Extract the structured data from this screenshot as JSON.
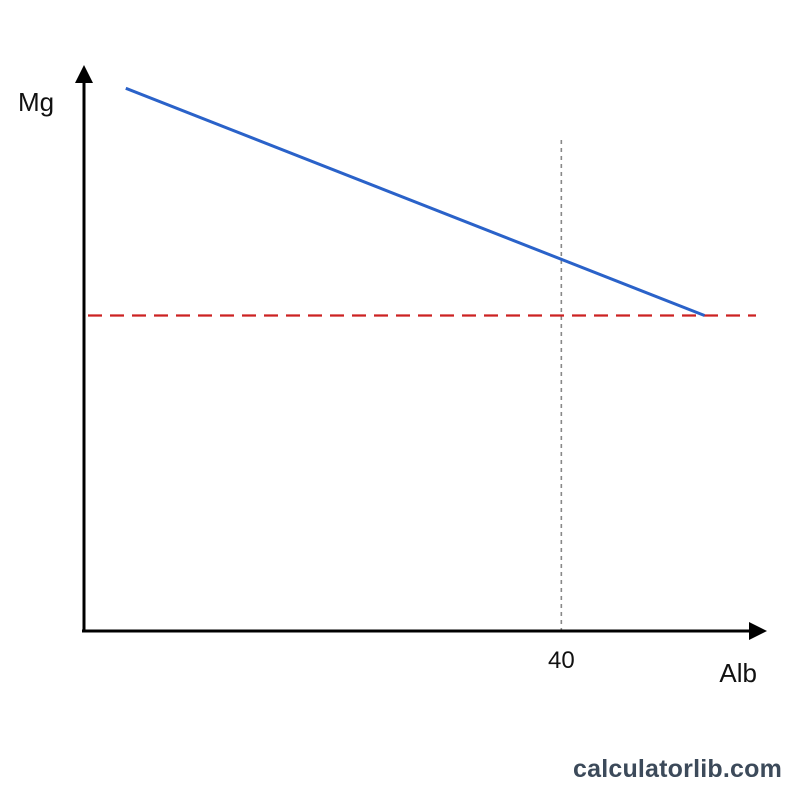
{
  "chart_data": {
    "type": "line",
    "xlabel": "Alb",
    "ylabel": "Mg",
    "x_ticks": [
      40
    ],
    "xlim": [
      0,
      60
    ],
    "ylim": [
      0,
      10
    ],
    "series": [
      {
        "x": [
          3.5,
          52
        ],
        "y": [
          8.6,
          5.0
        ],
        "color": "#2a62c9"
      }
    ],
    "reference_lines": [
      {
        "orientation": "horizontal",
        "value": 5.0,
        "style": "dashed",
        "color": "#cc2222"
      },
      {
        "orientation": "vertical",
        "value": 40,
        "style": "dotted",
        "color": "#888888"
      }
    ],
    "grid": false,
    "legend": "none"
  },
  "watermark": "calculatorlib.com"
}
